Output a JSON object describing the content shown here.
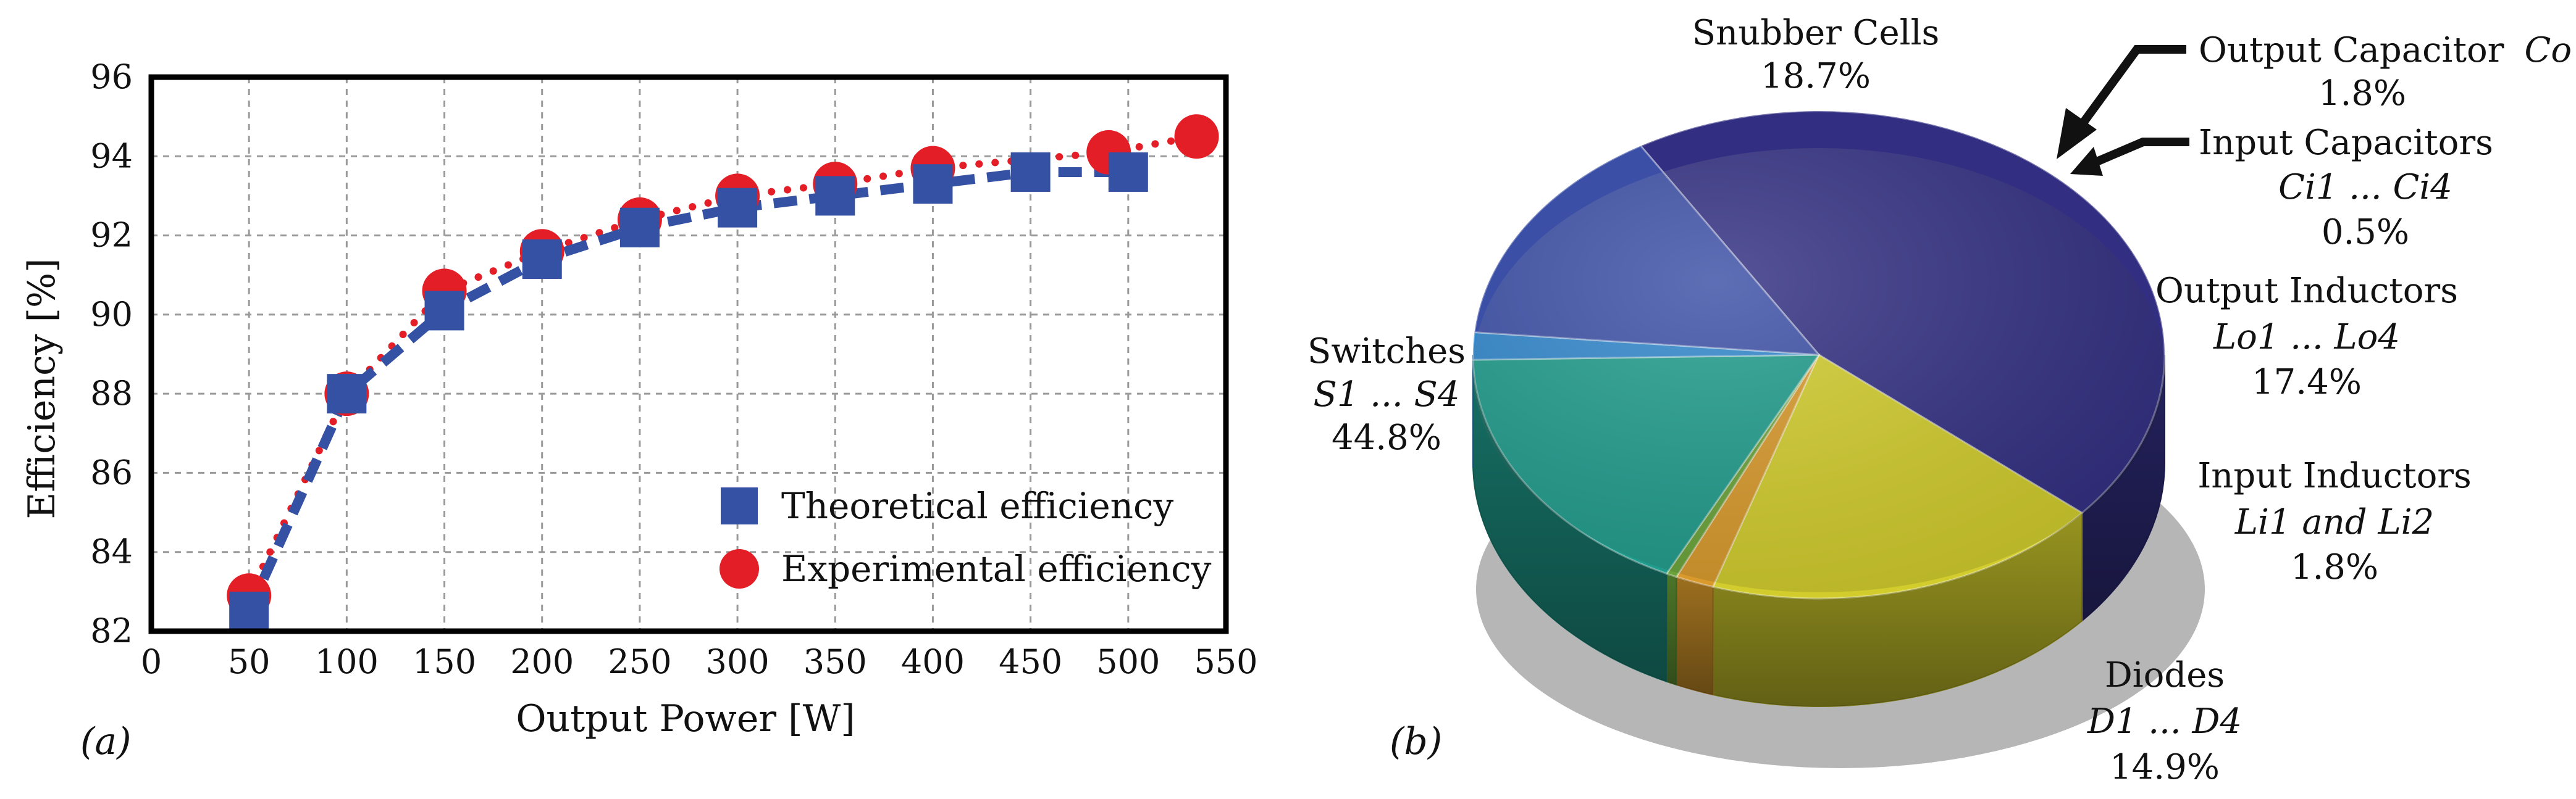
{
  "chart_data": [
    {
      "type": "line",
      "panel_label": "(a)",
      "xlabel": "Output Power [W]",
      "ylabel": "Efficiency [%]",
      "xlim": [
        0,
        550
      ],
      "ylim": [
        82,
        96
      ],
      "x_ticks": [
        "0",
        "50",
        "100",
        "150",
        "200",
        "250",
        "300",
        "350",
        "400",
        "450",
        "500",
        "550"
      ],
      "y_ticks": [
        "82",
        "84",
        "86",
        "88",
        "90",
        "92",
        "94",
        "96"
      ],
      "grid": true,
      "legend_position": "bottom-right",
      "series": [
        {
          "name": "Theoretical efficiency",
          "marker": "square",
          "line_style": "dashed",
          "color": "#3451a3",
          "x": [
            50,
            100,
            150,
            200,
            250,
            300,
            350,
            400,
            450,
            500
          ],
          "y": [
            82.5,
            88.0,
            90.1,
            91.4,
            92.2,
            92.7,
            93.0,
            93.3,
            93.6,
            93.6
          ]
        },
        {
          "name": "Experimental efficiency",
          "marker": "circle",
          "line_style": "dotted",
          "color": "#e41e26",
          "x": [
            50,
            100,
            150,
            200,
            250,
            300,
            350,
            400,
            490,
            535
          ],
          "y": [
            82.9,
            88.0,
            90.6,
            91.6,
            92.4,
            93.0,
            93.3,
            93.7,
            94.1,
            94.5
          ]
        }
      ]
    },
    {
      "type": "pie",
      "panel_label": "(b)",
      "slices": [
        {
          "label": "Switches",
          "symbols": "S1 ... S4",
          "value": 44.8,
          "value_text": "44.8%",
          "color": "#322f82"
        },
        {
          "label": "Snubber Cells",
          "symbols": "",
          "value": 18.7,
          "value_text": "18.7%",
          "color": "#d2cd2c"
        },
        {
          "label": "Output Capacitor",
          "symbols": "Co",
          "value": 1.8,
          "value_text": "1.8%",
          "color": "#d99a2b"
        },
        {
          "label": "Input Capacitors",
          "symbols": "Ci1 ... Ci4",
          "value": 0.5,
          "value_text": "0.5%",
          "color": "#6aa339"
        },
        {
          "label": "Output Inductors",
          "symbols": "Lo1 ... Lo4",
          "value": 17.4,
          "value_text": "17.4%",
          "color": "#1f9c8c"
        },
        {
          "label": "Input Inductors",
          "symbols": "Li1 and Li2",
          "value": 1.8,
          "value_text": "1.8%",
          "color": "#2f86cc"
        },
        {
          "label": "Diodes",
          "symbols": "D1 ... D4",
          "value": 14.9,
          "value_text": "14.9%",
          "color": "#3b4fa6"
        }
      ]
    }
  ]
}
